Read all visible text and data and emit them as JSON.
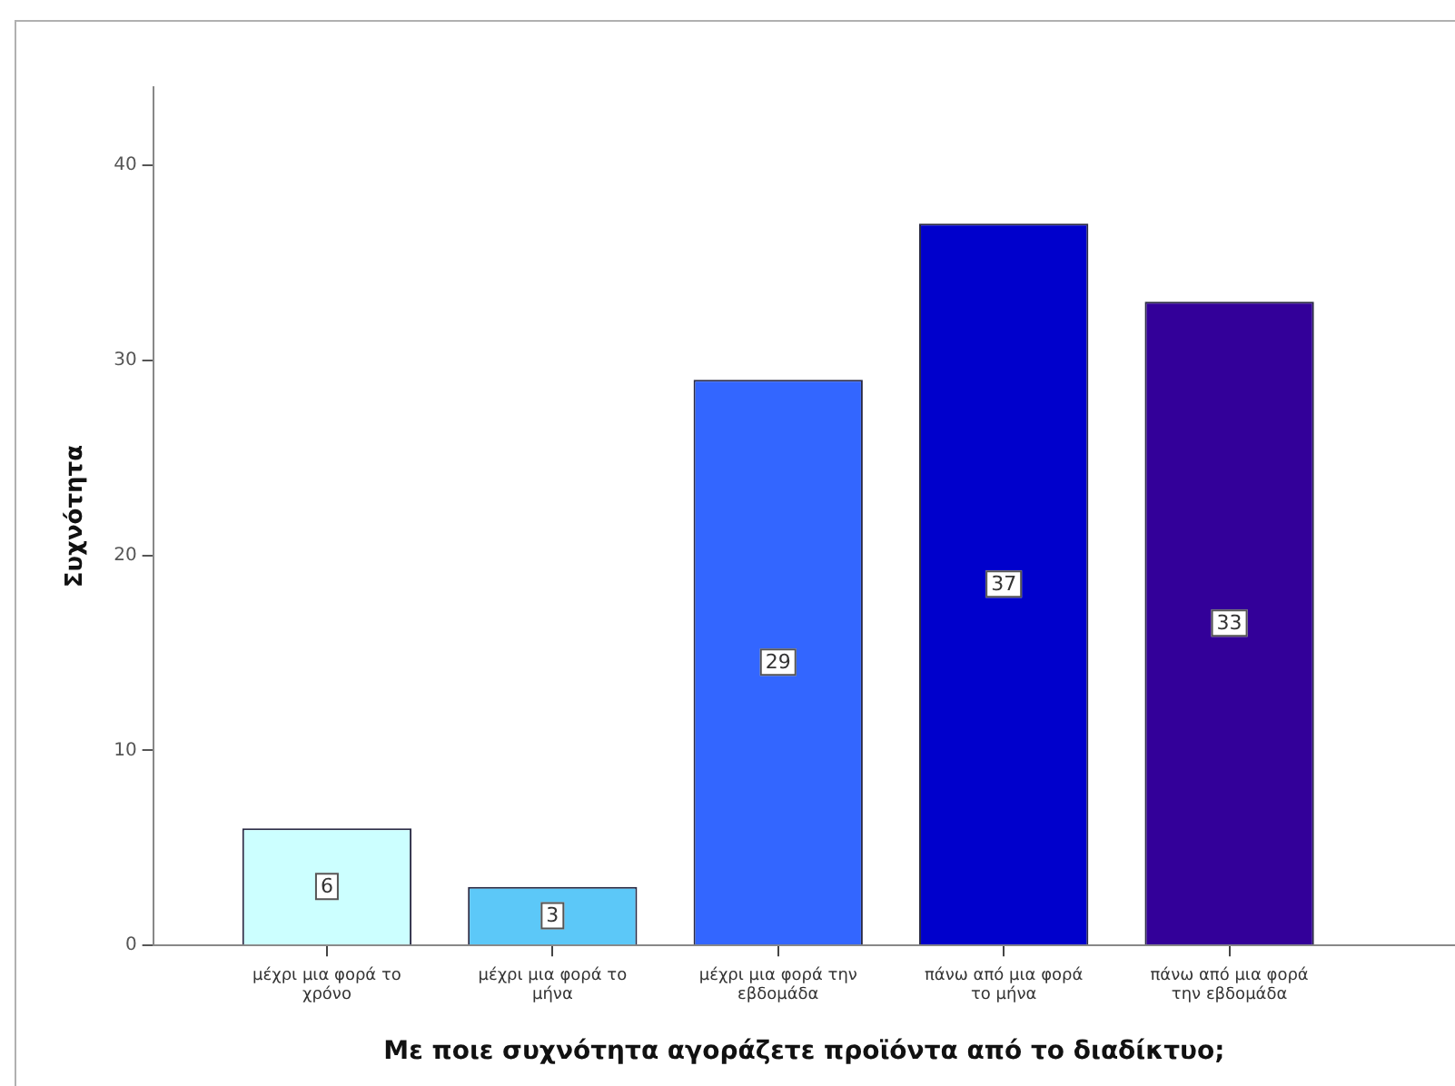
{
  "chart_data": {
    "type": "bar",
    "xlabel": "Με ποιε συχνότητα αγοράζετε προϊόντα από το διαδίκτυο;",
    "ylabel": "Συχνότητα",
    "categories": [
      "μέχρι μια φορά το χρόνο",
      "μέχρι μια φορά το μήνα",
      "μέχρι μια φορά την εβδομάδα",
      "πάνω από μια φορά το μήνα",
      "πάνω από μια φορά την εβδομάδα"
    ],
    "values": [
      6,
      3,
      29,
      37,
      33
    ],
    "colors": [
      "#ccffff",
      "#5cc8f8",
      "#3366ff",
      "#0000cc",
      "#330099"
    ],
    "ylim": [
      0,
      44
    ],
    "yticks": [
      0,
      10,
      20,
      30,
      40
    ],
    "grid": false,
    "legend": false,
    "data_labels": true
  }
}
